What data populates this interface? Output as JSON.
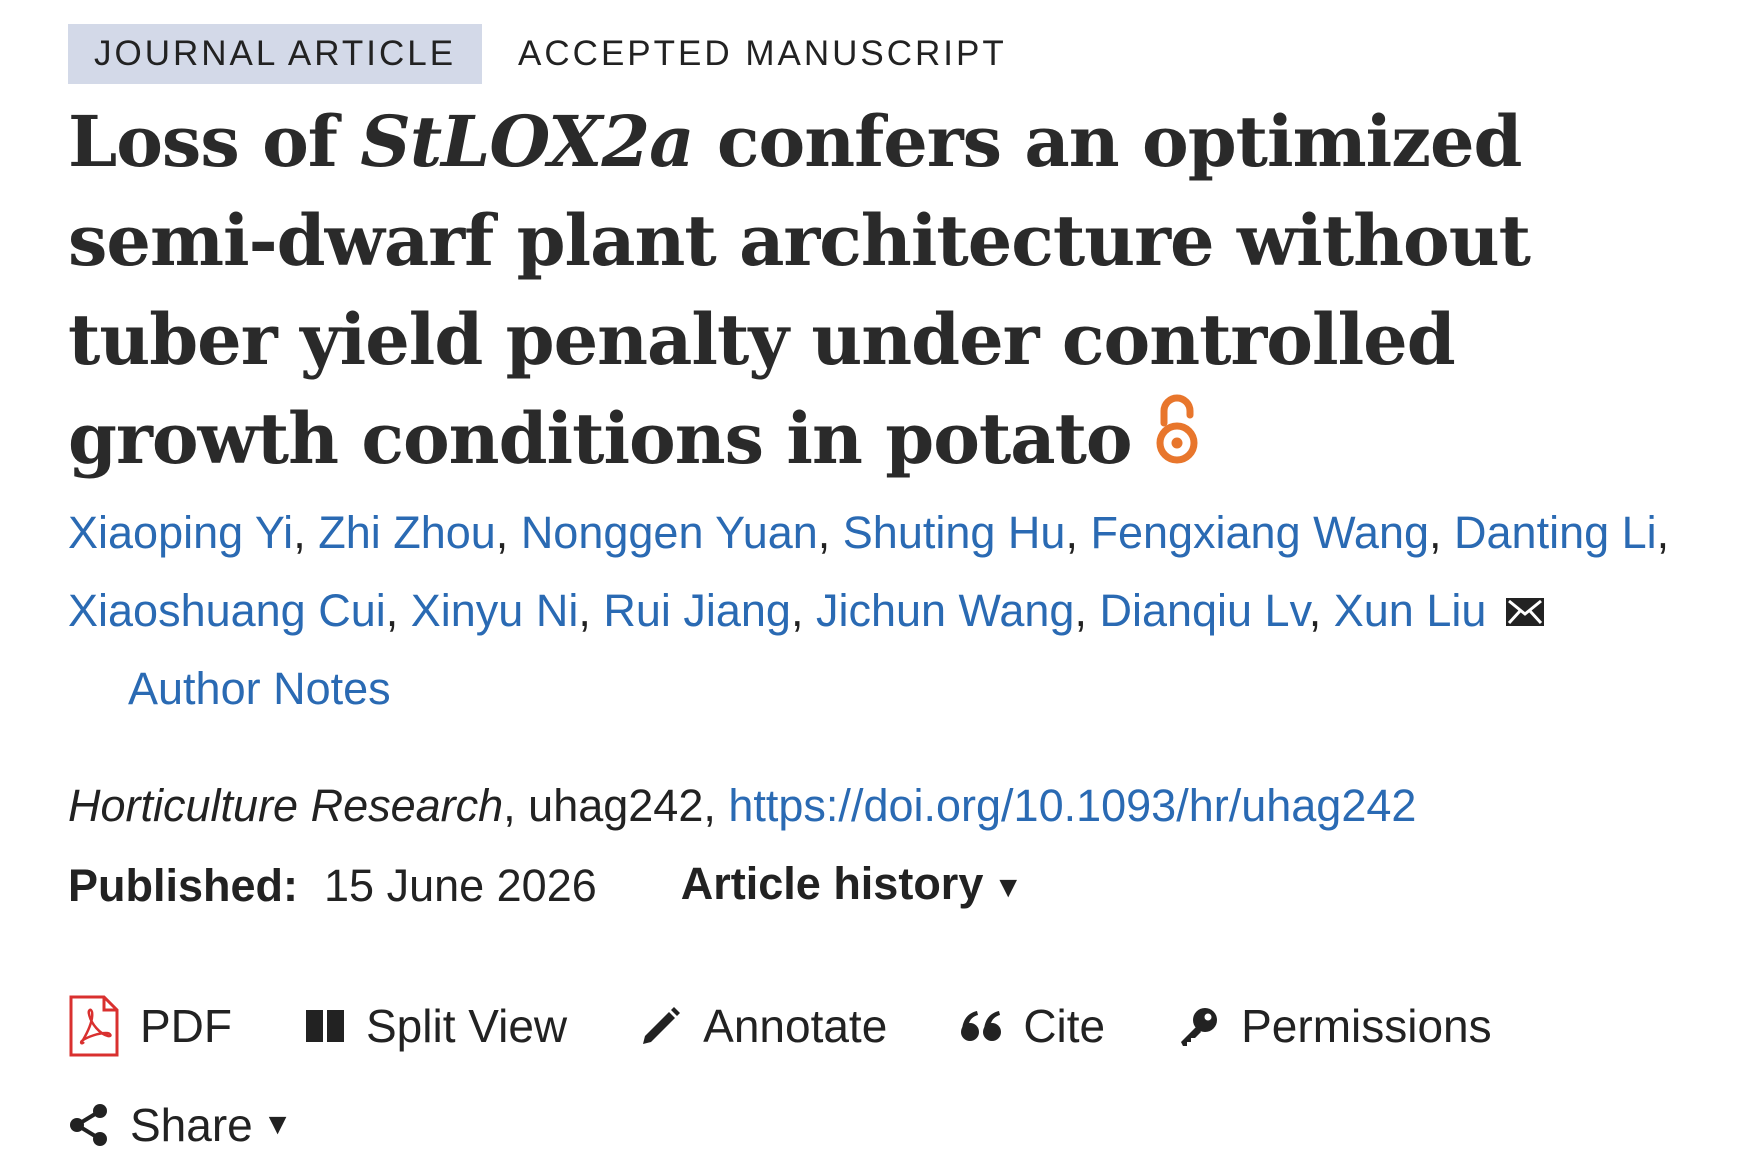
{
  "tags": {
    "article_type": "JOURNAL ARTICLE",
    "status": "ACCEPTED MANUSCRIPT"
  },
  "title": {
    "part1": "Loss of ",
    "gene": "StLOX2a",
    "part2": " confers an optimized semi-dwarf plant architecture without tuber yield penalty under controlled growth conditions in potato"
  },
  "authors": [
    "Xiaoping Yi",
    "Zhi Zhou",
    "Nonggen Yuan",
    "Shuting Hu",
    "Fengxiang Wang",
    "Danting Li",
    "Xiaoshuang Cui",
    "Xinyu Ni",
    "Rui Jiang",
    "Jichun Wang",
    "Dianqiu Lv",
    "Xun Liu"
  ],
  "author_notes": "Author Notes",
  "citation": {
    "journal": "Horticulture Research",
    "article_id": ", uhag242, ",
    "doi": "https://doi.org/10.1093/hr/uhag242"
  },
  "published": {
    "label": "Published:",
    "date": "15 June 2026",
    "history_label": "Article history"
  },
  "toolbar": {
    "pdf": "PDF",
    "split_view": "Split View",
    "annotate": "Annotate",
    "cite": "Cite",
    "permissions": "Permissions",
    "share": "Share"
  },
  "colors": {
    "link": "#2a6ab3",
    "open_access": "#e8762c",
    "pdf_red": "#d9302f",
    "tag_bg": "#d3d9e8"
  },
  "icons": {
    "open_access": "open-access-icon",
    "mail": "mail-icon",
    "pdf": "pdf-icon",
    "split_view": "split-view-icon",
    "annotate": "pencil-icon",
    "cite": "quote-icon",
    "permissions": "key-icon",
    "share": "share-icon"
  }
}
